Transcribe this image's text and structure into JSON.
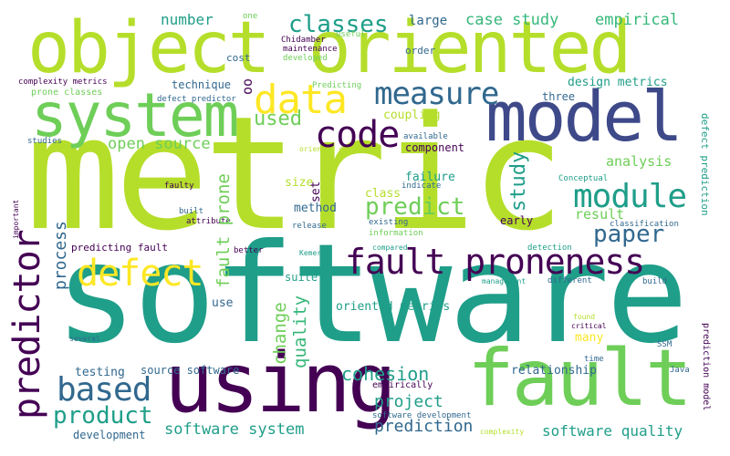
{
  "palette": {
    "lime": "#b5de2b",
    "green": "#6ece58",
    "teal": "#1f9e89",
    "blue": "#31688e",
    "indigo": "#3e4989",
    "purple": "#440154",
    "yellow": "#fde725",
    "sea": "#35b779"
  },
  "words": {
    "software": "software",
    "metric": "metric",
    "object_oriented": "object oriented",
    "fault": "fault",
    "model": "model",
    "using": "using",
    "system": "system",
    "fault_proneness": "fault proneness",
    "measure": "measure",
    "data": "data",
    "code": "code",
    "predictor": "predictor",
    "defect": "defect",
    "module": "module",
    "based": "based",
    "product": "product",
    "classes": "classes",
    "paper": "paper",
    "predict": "predict",
    "study": "study",
    "fault_prone": "fault prone",
    "used": "used",
    "quality": "quality",
    "change": "change",
    "cohesion": "cohesion",
    "prediction": "prediction",
    "software_system": "software system",
    "software_quality": "software quality",
    "project": "project",
    "process": "process",
    "open_source": "open source",
    "empirical": "empirical",
    "case_study": "case study",
    "large": "large",
    "number": "number",
    "analysis": "analysis",
    "result": "result",
    "class": "class",
    "method": "method",
    "set": "set",
    "size": "size",
    "oo": "oo",
    "oriented_metrics": "oriented metrics",
    "defect_prediction": "defect prediction",
    "prediction_model": "prediction model",
    "source_software": "source software",
    "testing": "testing",
    "relationship": "relationship",
    "failure": "failure",
    "component": "component",
    "coupling": "coupling",
    "design_metrics": "design metrics",
    "three": "three",
    "technique": "technique",
    "defect_predictor": "defect predictor",
    "prone_classes": "prone classes",
    "complexity_metrics": "complexity metrics",
    "predicting_fault": "predicting fault",
    "early": "early",
    "suite": "suite",
    "use": "use",
    "many": "many",
    "empirically": "empirically",
    "development": "development",
    "software_development": "software development",
    "cost": "cost",
    "order": "order",
    "chidamber": "Chidamber",
    "maintenance": "maintenance",
    "developed": "developed",
    "useful": "useful",
    "one": "one",
    "predicting": "Predicting",
    "studies": "studies",
    "available": "available",
    "oriented_design": "oriented design",
    "conceptual": "Conceptual",
    "faulty": "faulty",
    "built": "built",
    "attribute": "attribute",
    "indicate": "indicate",
    "existing": "existing",
    "information": "information",
    "release": "release",
    "classification": "classification",
    "better": "better",
    "kemerer": "Kemerer",
    "detection": "detection",
    "compared": "compared",
    "management": "management",
    "different": "different",
    "build": "build",
    "found": "found",
    "critical": "critical",
    "ssm": "SSM",
    "time": "time",
    "java": "Java",
    "several": "several",
    "important": "important",
    "complexity": "complexity"
  }
}
